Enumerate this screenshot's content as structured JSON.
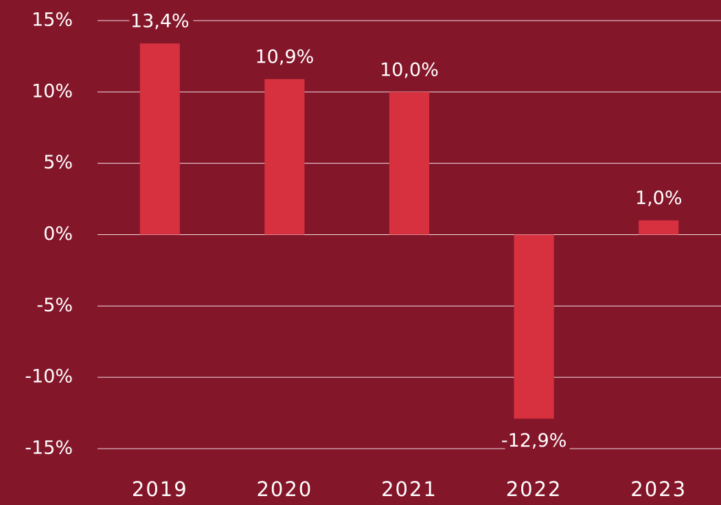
{
  "chart_data": {
    "type": "bar",
    "categories": [
      "2019",
      "2020",
      "2021",
      "2022",
      "2023"
    ],
    "values": [
      13.4,
      10.9,
      10.0,
      -12.9,
      1.0
    ],
    "value_labels": [
      "13,4%",
      "10,9%",
      "10,0%",
      "-12,9%",
      "1,0%"
    ],
    "color": "#d7313f",
    "ylim": [
      -15,
      15
    ],
    "yticks": [
      {
        "value": -15,
        "label": "-15%"
      },
      {
        "value": -10,
        "label": "-10%"
      },
      {
        "value": -5,
        "label": "-5%"
      },
      {
        "value": 0,
        "label": "0%"
      },
      {
        "value": 5,
        "label": "5%"
      },
      {
        "value": 10,
        "label": "10%"
      },
      {
        "value": 15,
        "label": "15%"
      }
    ],
    "grid": true
  }
}
